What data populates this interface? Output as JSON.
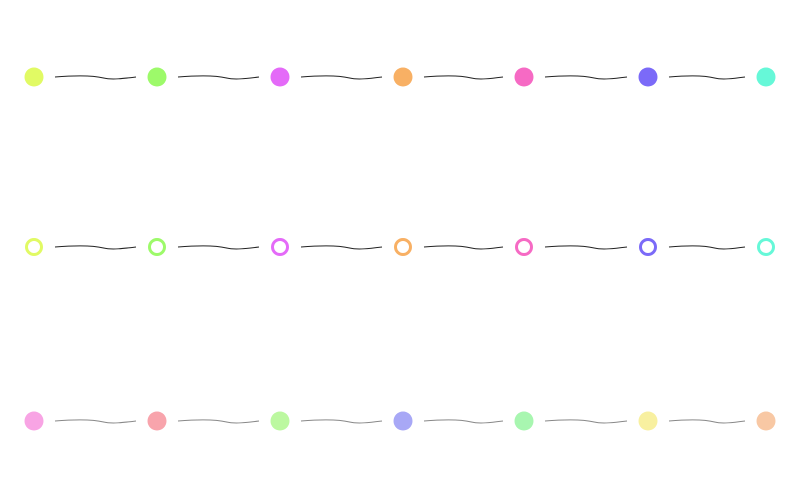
{
  "rows": [
    {
      "style": "filled",
      "colors": [
        "#e1fa64",
        "#9dfa6a",
        "#e46af8",
        "#f8b064",
        "#f66ac4",
        "#7b6af8",
        "#66f8d8"
      ],
      "connector_color": "#222222"
    },
    {
      "style": "outlined",
      "colors": [
        "#e1fa64",
        "#9dfa6a",
        "#e46af8",
        "#f8b064",
        "#f66ac4",
        "#7b6af8",
        "#66f8d8"
      ],
      "connector_color": "#222222"
    },
    {
      "style": "filled-pastel",
      "colors": [
        "#f8a4e4",
        "#f8a4ac",
        "#bcf8a0",
        "#a8a8f6",
        "#a8f6b0",
        "#f8f0a0",
        "#f8c8a4"
      ],
      "connector_color": "#888888"
    }
  ]
}
